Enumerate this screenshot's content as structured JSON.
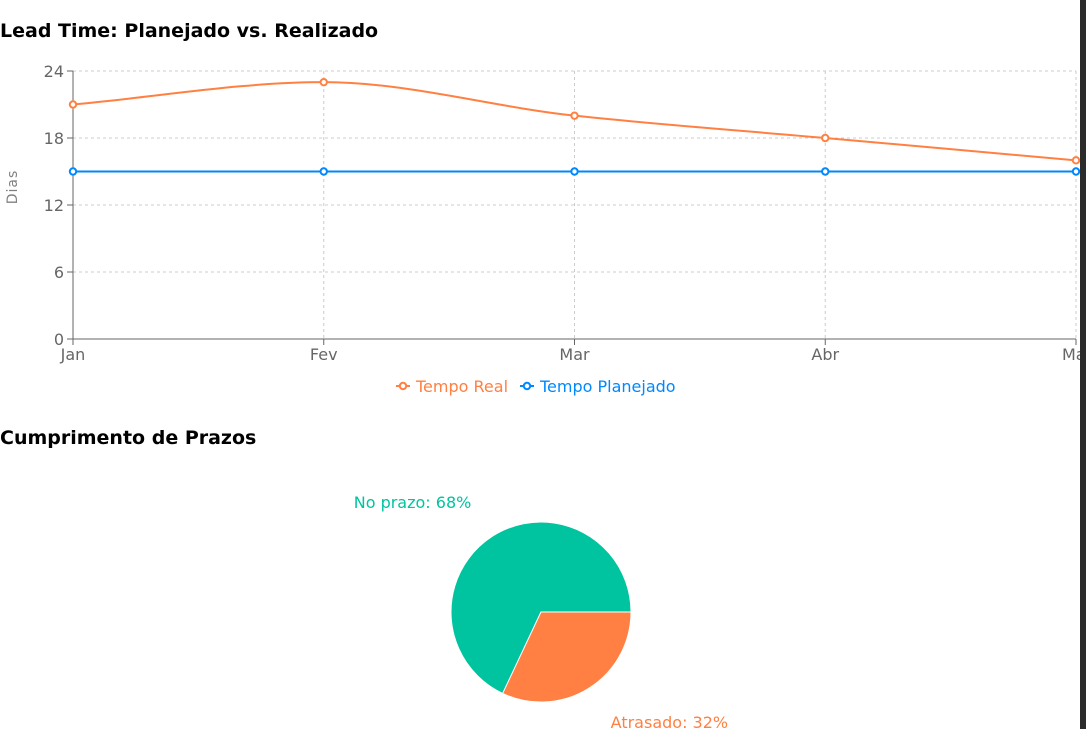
{
  "charts": {
    "line_title": "Lead Time: Planejado vs. Realizado",
    "pie_title": "Cumprimento de Prazos"
  },
  "colors": {
    "real": "#FF8042",
    "planned": "#0088FE",
    "on_time": "#00C49F",
    "late": "#FF8042",
    "grid": "#cccccc",
    "axis": "#666666"
  },
  "chart_data": [
    {
      "type": "line",
      "title": "Lead Time: Planejado vs. Realizado",
      "xlabel": "",
      "ylabel": "Dias",
      "categories": [
        "Jan",
        "Fev",
        "Mar",
        "Abr",
        "Mai"
      ],
      "ylim": [
        0,
        24
      ],
      "yticks": [
        0,
        6,
        12,
        18,
        24
      ],
      "grid": true,
      "legend": "bottom-center",
      "series": [
        {
          "name": "Tempo Real",
          "color": "#FF8042",
          "values": [
            21,
            23,
            20,
            18,
            16
          ]
        },
        {
          "name": "Tempo Planejado",
          "color": "#0088FE",
          "values": [
            15,
            15,
            15,
            15,
            15
          ]
        }
      ]
    },
    {
      "type": "pie",
      "title": "Cumprimento de Prazos",
      "slices": [
        {
          "name": "No prazo",
          "value": 68,
          "color": "#00C49F",
          "label": "No prazo: 68%"
        },
        {
          "name": "Atrasado",
          "value": 32,
          "color": "#FF8042",
          "label": "Atrasado: 32%"
        }
      ]
    }
  ]
}
